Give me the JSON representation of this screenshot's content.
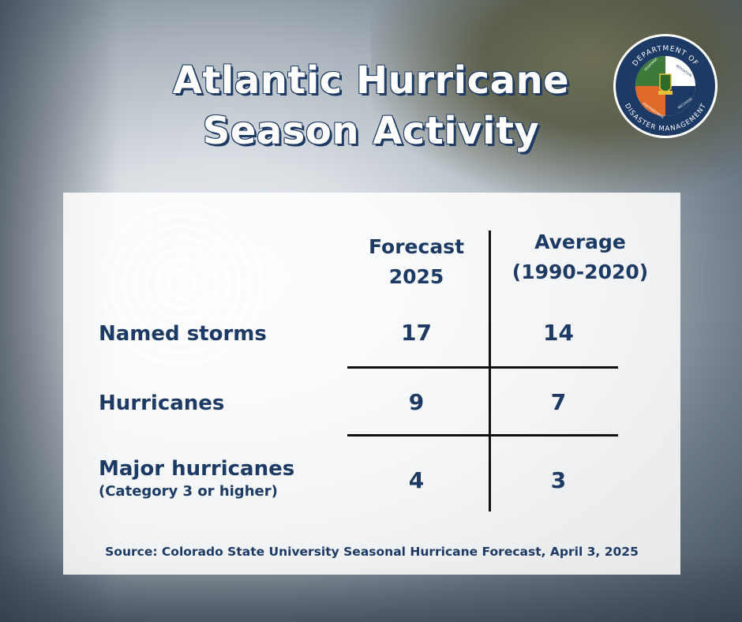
{
  "title": "Atlantic Hurricane\nSeason Activity",
  "logo": {
    "top_text": "DEPARTMENT OF",
    "bottom_text": "DISASTER MANAGEMENT",
    "quadrants": [
      "RESPONSE",
      "MITIGATION",
      "PREPAREDNESS",
      "RECOVERY"
    ],
    "colors": {
      "navy": "#1c3a63",
      "green": "#3d7a3a",
      "orange": "#e06a2a",
      "white": "#ffffff"
    }
  },
  "table": {
    "col_headers": [
      "Forecast\n2025",
      "Average\n(1990-2020)"
    ],
    "rows": [
      {
        "label": "Named storms",
        "sublabel": "",
        "forecast": "17",
        "average": "14"
      },
      {
        "label": "Hurricanes",
        "sublabel": "",
        "forecast": "9",
        "average": "7"
      },
      {
        "label": "Major hurricanes",
        "sublabel": "(Category 3 or higher)",
        "forecast": "4",
        "average": "3"
      }
    ]
  },
  "source": "Source: Colorado State University Seasonal Hurricane Forecast, April 3, 2025",
  "colors": {
    "text": "#1c3a63",
    "panel": "#ffffff"
  }
}
